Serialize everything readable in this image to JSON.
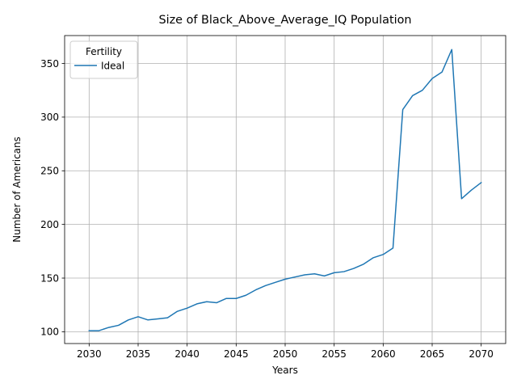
{
  "chart_data": {
    "type": "line",
    "title": "Size of Black_Above_Average_IQ Population",
    "xlabel": "Years",
    "ylabel": "Number of Americans",
    "xlim": [
      2027.5,
      2072.5
    ],
    "ylim": [
      89,
      376
    ],
    "xticks": [
      2030,
      2035,
      2040,
      2045,
      2050,
      2055,
      2060,
      2065,
      2070
    ],
    "yticks": [
      100,
      150,
      200,
      250,
      300,
      350
    ],
    "grid": true,
    "legend": {
      "title": "Fertility",
      "placement": "upper-left"
    },
    "series": [
      {
        "name": "Ideal",
        "color": "#1f77b4",
        "x": [
          2030,
          2031,
          2032,
          2033,
          2034,
          2035,
          2036,
          2037,
          2038,
          2039,
          2040,
          2041,
          2042,
          2043,
          2044,
          2045,
          2046,
          2047,
          2048,
          2049,
          2050,
          2051,
          2052,
          2053,
          2054,
          2055,
          2056,
          2057,
          2058,
          2059,
          2060,
          2061,
          2062,
          2063,
          2064,
          2065,
          2066,
          2067,
          2068,
          2069,
          2070
        ],
        "y": [
          101,
          101,
          104,
          106,
          111,
          114,
          111,
          112,
          113,
          119,
          122,
          126,
          128,
          127,
          131,
          131,
          134,
          139,
          143,
          146,
          149,
          151,
          153,
          154,
          152,
          155,
          156,
          159,
          163,
          169,
          172,
          178,
          307,
          320,
          325,
          336,
          342,
          363,
          224,
          232,
          239
        ]
      }
    ]
  }
}
